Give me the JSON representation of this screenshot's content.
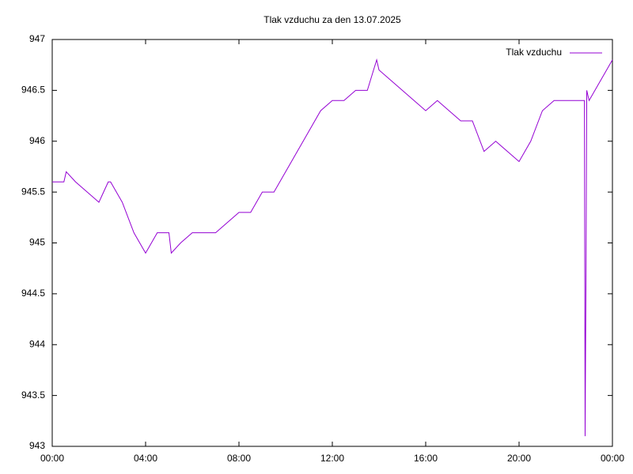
{
  "chart_data": {
    "type": "line",
    "title": "Tlak vzduchu za den 13.07.2025",
    "x": [
      0,
      0.5,
      0.6,
      1.0,
      1.5,
      2.0,
      2.4,
      2.5,
      3.0,
      3.5,
      4.0,
      4.5,
      5.0,
      5.1,
      5.5,
      6.0,
      6.5,
      7.0,
      7.5,
      8.0,
      8.5,
      9.0,
      9.5,
      10.0,
      10.5,
      11.0,
      11.5,
      12.0,
      12.5,
      13.0,
      13.5,
      13.9,
      14.0,
      14.5,
      15.0,
      15.5,
      16.0,
      16.5,
      17.0,
      17.5,
      18.0,
      18.5,
      19.0,
      19.5,
      20.0,
      20.5,
      21.0,
      21.5,
      22.0,
      22.5,
      22.8,
      22.83,
      22.87,
      22.9,
      23.0,
      23.5,
      24.0
    ],
    "series": [
      {
        "name": "Tlak vzduchu",
        "color": "#9400d3",
        "values": [
          945.6,
          945.6,
          945.7,
          945.6,
          945.5,
          945.4,
          945.6,
          945.6,
          945.4,
          945.1,
          944.9,
          945.1,
          945.1,
          944.9,
          945.0,
          945.1,
          945.1,
          945.1,
          945.2,
          945.3,
          945.3,
          945.5,
          945.5,
          945.7,
          945.9,
          946.1,
          946.3,
          946.4,
          946.4,
          946.5,
          946.5,
          946.8,
          946.7,
          946.6,
          946.5,
          946.4,
          946.3,
          946.4,
          946.3,
          946.2,
          946.2,
          945.9,
          946.0,
          945.9,
          945.8,
          946.0,
          946.3,
          946.4,
          946.4,
          946.4,
          946.4,
          943.1,
          944.8,
          946.5,
          946.4,
          946.6,
          946.8
        ]
      }
    ],
    "xlim": [
      0,
      24
    ],
    "xticks": [
      {
        "value": 0,
        "label": "00:00"
      },
      {
        "value": 4,
        "label": "04:00"
      },
      {
        "value": 8,
        "label": "08:00"
      },
      {
        "value": 12,
        "label": "12:00"
      },
      {
        "value": 16,
        "label": "16:00"
      },
      {
        "value": 20,
        "label": "20:00"
      },
      {
        "value": 24,
        "label": "00:00"
      }
    ],
    "ylim": [
      943,
      947
    ],
    "yticks": [
      943,
      943.5,
      944,
      944.5,
      945,
      945.5,
      946,
      946.5,
      947
    ],
    "grid": false,
    "legend": "top right"
  }
}
